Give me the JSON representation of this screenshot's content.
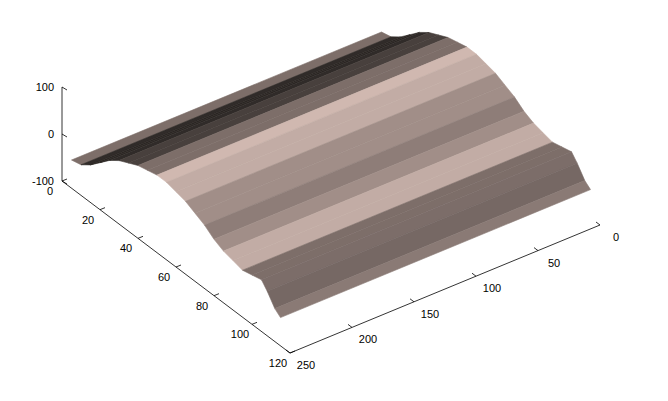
{
  "chart_data": {
    "type": "surface",
    "xlim": [
      0,
      250
    ],
    "ylim": [
      0,
      120
    ],
    "zlim": [
      -100,
      100
    ],
    "xticks": [
      0,
      50,
      100,
      150,
      200,
      250
    ],
    "yticks": [
      0,
      20,
      40,
      60,
      80,
      100,
      120
    ],
    "zticks": [
      -100,
      0,
      100
    ],
    "grid": false,
    "color": "#d7beb6",
    "profile": {
      "y": [
        5,
        10,
        15,
        20,
        25,
        30,
        35,
        40,
        45,
        50,
        55,
        60,
        65,
        70,
        75,
        80,
        85,
        90,
        95,
        100,
        105,
        108,
        112,
        115
      ],
      "z": [
        -40,
        -35,
        -20,
        0,
        20,
        35,
        45,
        55,
        60,
        65,
        65,
        60,
        55,
        45,
        35,
        20,
        10,
        5,
        0,
        5,
        10,
        -5,
        -30,
        -40
      ]
    }
  }
}
